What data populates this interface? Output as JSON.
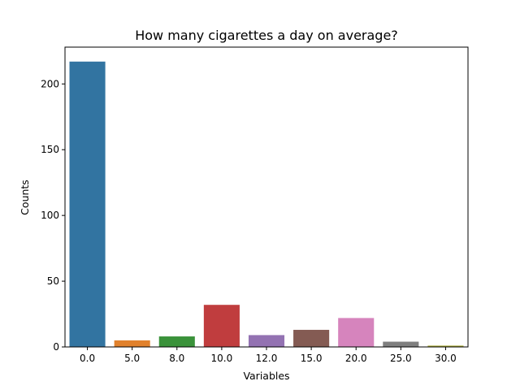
{
  "chart_data": {
    "type": "bar",
    "title": "How many cigarettes a day on average?",
    "xlabel": "Variables",
    "ylabel": "Counts",
    "categories": [
      "0.0",
      "5.0",
      "8.0",
      "10.0",
      "12.0",
      "15.0",
      "20.0",
      "25.0",
      "30.0"
    ],
    "values": [
      217,
      5,
      8,
      32,
      9,
      13,
      22,
      4,
      1
    ],
    "colors": [
      "#3274a1",
      "#e1812c",
      "#3a923a",
      "#c03d3e",
      "#9372b2",
      "#845b53",
      "#d684bd",
      "#7f7f7f",
      "#a9aa35"
    ],
    "ylim": [
      0,
      228
    ],
    "yticks": [
      0,
      50,
      100,
      150,
      200
    ],
    "grid": false,
    "legend": "none"
  }
}
